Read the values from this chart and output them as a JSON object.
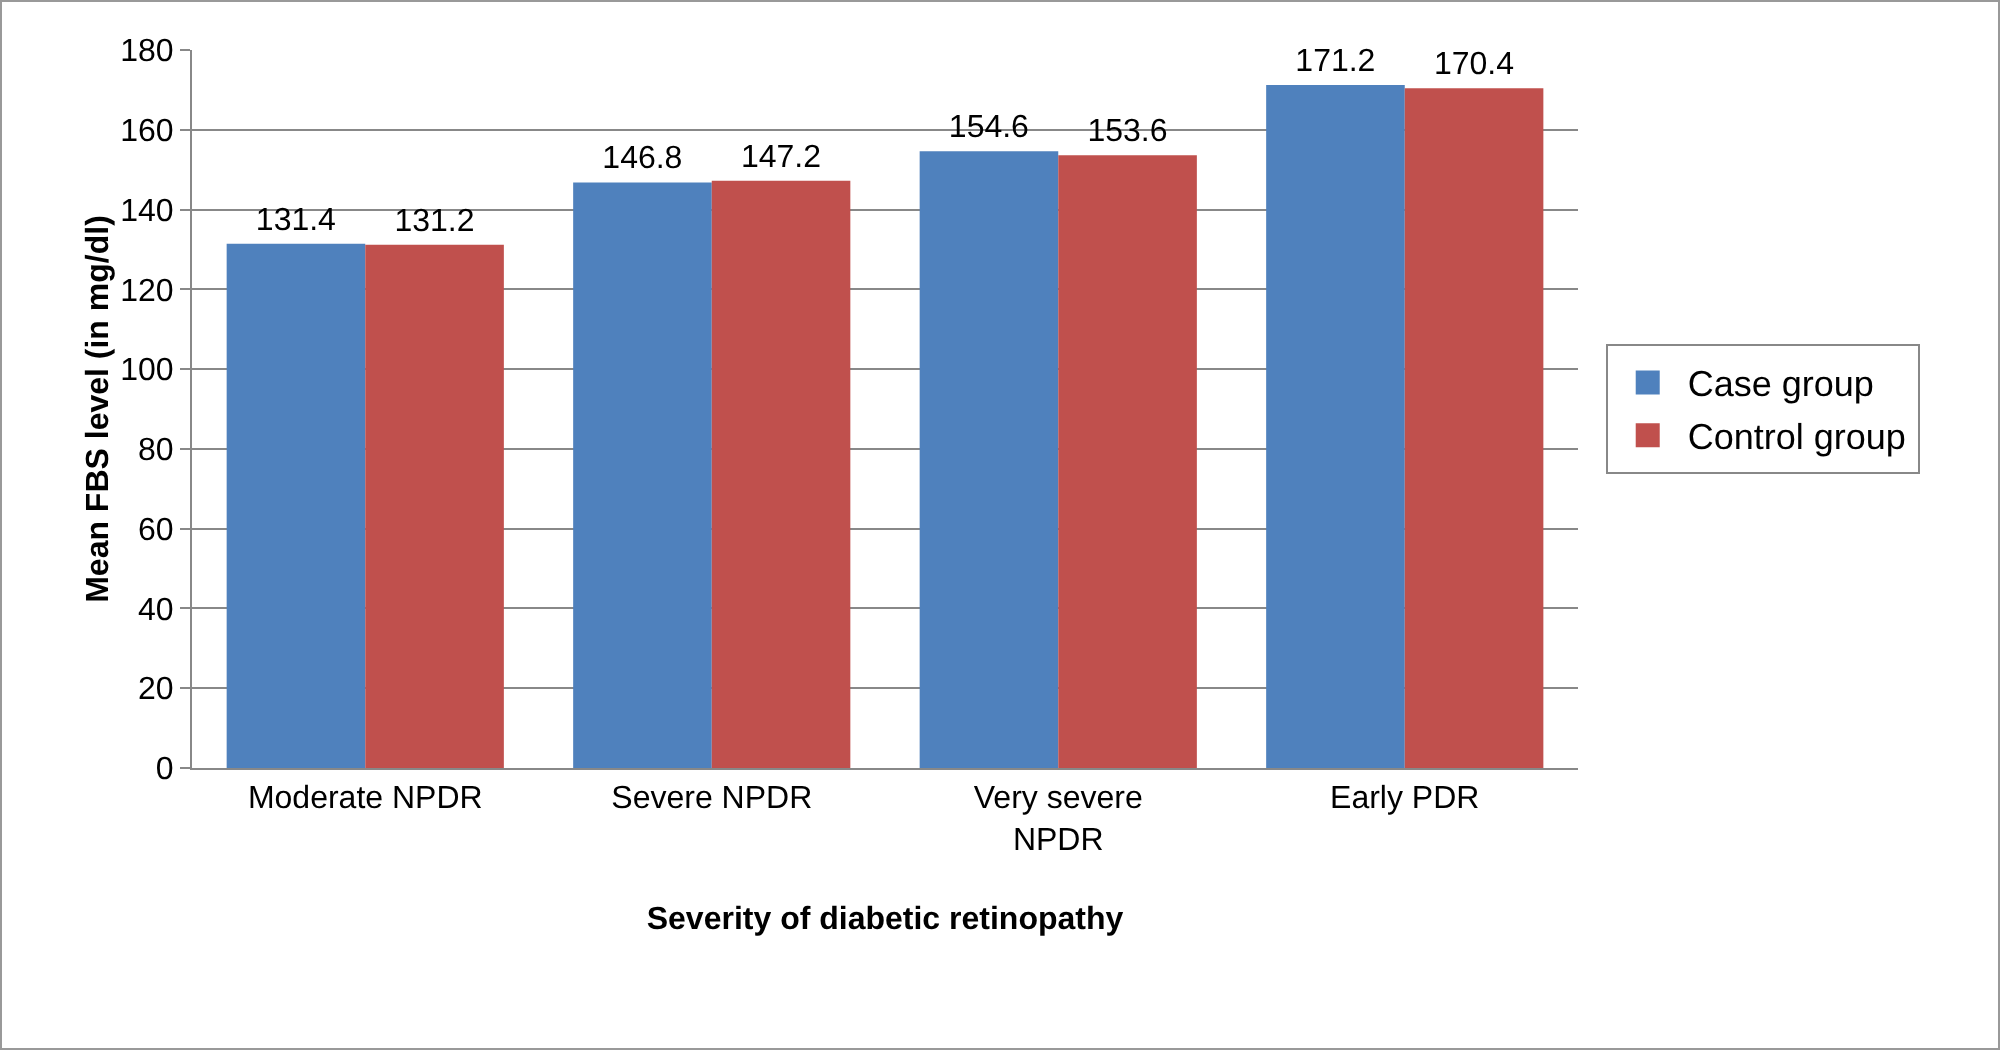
{
  "chart_data": {
    "type": "bar",
    "xlabel": "Severity of diabetic retinopathy",
    "ylabel": "Mean FBS level (in mg/dl)",
    "categories": [
      "Moderate NPDR",
      "Severe NPDR",
      "Very severe NPDR",
      "Early PDR"
    ],
    "series": [
      {
        "name": "Case group",
        "color": "#4f81bd",
        "values": [
          131.4,
          146.8,
          154.6,
          171.2
        ]
      },
      {
        "name": "Control group",
        "color": "#c0504d",
        "values": [
          131.2,
          147.2,
          153.6,
          170.4
        ]
      }
    ],
    "ylim": [
      0,
      180
    ],
    "yticks": [
      0,
      20,
      40,
      60,
      80,
      100,
      120,
      140,
      160,
      180
    ],
    "grid": "y",
    "legend": "right",
    "data_labels": true
  }
}
